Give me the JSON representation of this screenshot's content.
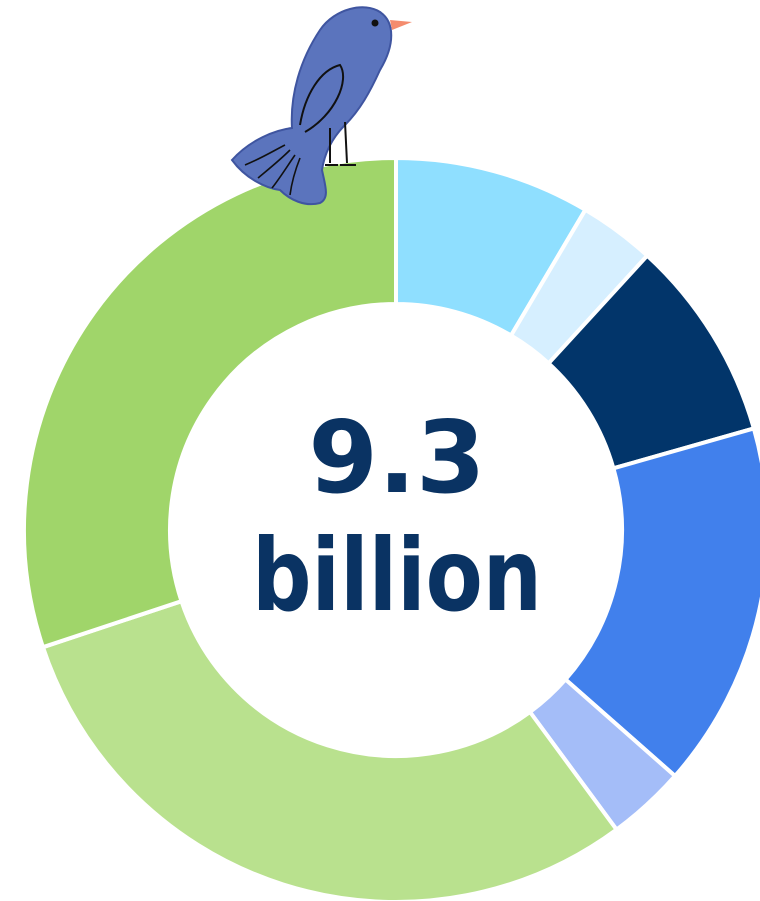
{
  "chart_data": {
    "type": "donut",
    "center_text": [
      "9.3",
      "billion"
    ],
    "values": [
      8.5,
      3.3,
      8.8,
      15.9,
      3.4,
      30.0,
      30.1
    ],
    "colors": [
      "#8fdfff",
      "#d6efff",
      "#02356a",
      "#4180ec",
      "#a4bdf8",
      "#b9e18e",
      "#a0d56a"
    ]
  }
}
